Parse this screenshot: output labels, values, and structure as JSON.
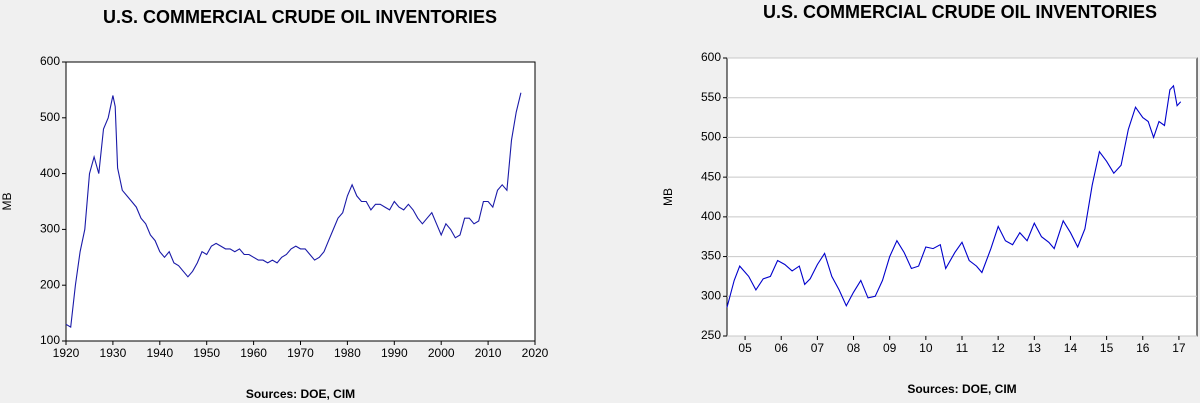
{
  "chart_data": [
    {
      "type": "line",
      "title": "U.S. COMMERCIAL CRUDE OIL INVENTORIES",
      "y_label": "MB",
      "source": "Sources:  DOE, CIM",
      "xlim": [
        1920,
        2020
      ],
      "xticks": [
        1920,
        1930,
        1940,
        1950,
        1960,
        1970,
        1980,
        1990,
        2000,
        2010,
        2020
      ],
      "ylim": [
        100,
        600
      ],
      "yticks": [
        100,
        200,
        300,
        400,
        500,
        600
      ],
      "grid": false,
      "series": [
        {
          "color": "#1a1aa8",
          "x": [
            1920,
            1921,
            1922,
            1923,
            1924,
            1925,
            1926,
            1927,
            1928,
            1929,
            1930,
            1930.5,
            1931,
            1932,
            1933,
            1934,
            1935,
            1936,
            1937,
            1938,
            1939,
            1940,
            1941,
            1942,
            1943,
            1944,
            1945,
            1946,
            1947,
            1948,
            1949,
            1950,
            1951,
            1952,
            1953,
            1954,
            1955,
            1956,
            1957,
            1958,
            1959,
            1960,
            1961,
            1962,
            1963,
            1964,
            1965,
            1966,
            1967,
            1968,
            1969,
            1970,
            1971,
            1972,
            1973,
            1974,
            1975,
            1976,
            1977,
            1978,
            1979,
            1980,
            1981,
            1982,
            1983,
            1984,
            1985,
            1986,
            1987,
            1988,
            1989,
            1990,
            1991,
            1992,
            1993,
            1994,
            1995,
            1996,
            1997,
            1998,
            1999,
            2000,
            2001,
            2002,
            2003,
            2004,
            2005,
            2006,
            2007,
            2008,
            2009,
            2010,
            2011,
            2012,
            2013,
            2014,
            2015,
            2016,
            2017
          ],
          "values": [
            130,
            125,
            200,
            260,
            300,
            400,
            430,
            400,
            480,
            500,
            540,
            520,
            410,
            370,
            360,
            350,
            340,
            320,
            310,
            290,
            280,
            260,
            250,
            260,
            240,
            235,
            225,
            215,
            225,
            240,
            260,
            255,
            270,
            275,
            270,
            265,
            265,
            260,
            265,
            255,
            255,
            250,
            245,
            245,
            240,
            245,
            240,
            250,
            255,
            265,
            270,
            265,
            265,
            255,
            245,
            250,
            260,
            280,
            300,
            320,
            330,
            360,
            380,
            360,
            350,
            350,
            335,
            345,
            345,
            340,
            335,
            350,
            340,
            335,
            345,
            335,
            320,
            310,
            320,
            330,
            310,
            290,
            310,
            300,
            285,
            290,
            320,
            320,
            310,
            315,
            350,
            350,
            340,
            370,
            380,
            370,
            460,
            510,
            545
          ]
        }
      ]
    },
    {
      "type": "line",
      "title": "U.S. COMMERCIAL CRUDE OIL INVENTORIES",
      "y_label": "MB",
      "source": "Sources:  DOE, CIM",
      "xlim": [
        2005,
        2018
      ],
      "xticks": [
        {
          "value": 2005.5,
          "label": "05"
        },
        {
          "value": 2006.5,
          "label": "06"
        },
        {
          "value": 2007.5,
          "label": "07"
        },
        {
          "value": 2008.5,
          "label": "08"
        },
        {
          "value": 2009.5,
          "label": "09"
        },
        {
          "value": 2010.5,
          "label": "10"
        },
        {
          "value": 2011.5,
          "label": "11"
        },
        {
          "value": 2012.5,
          "label": "12"
        },
        {
          "value": 2013.5,
          "label": "13"
        },
        {
          "value": 2014.5,
          "label": "14"
        },
        {
          "value": 2015.5,
          "label": "15"
        },
        {
          "value": 2016.5,
          "label": "16"
        },
        {
          "value": 2017.5,
          "label": "17"
        }
      ],
      "ylim": [
        250,
        600
      ],
      "yticks": [
        250,
        300,
        350,
        400,
        450,
        500,
        550,
        600
      ],
      "grid": true,
      "series": [
        {
          "color": "#0000cc",
          "x": [
            2005.0,
            2005.2,
            2005.35,
            2005.6,
            2005.8,
            2006.0,
            2006.2,
            2006.4,
            2006.6,
            2006.8,
            2007.0,
            2007.15,
            2007.3,
            2007.5,
            2007.7,
            2007.9,
            2008.1,
            2008.3,
            2008.5,
            2008.7,
            2008.9,
            2009.1,
            2009.3,
            2009.5,
            2009.7,
            2009.9,
            2010.1,
            2010.3,
            2010.5,
            2010.7,
            2010.9,
            2011.05,
            2011.3,
            2011.5,
            2011.7,
            2011.9,
            2012.05,
            2012.3,
            2012.5,
            2012.7,
            2012.9,
            2013.1,
            2013.3,
            2013.5,
            2013.7,
            2013.9,
            2014.05,
            2014.3,
            2014.5,
            2014.7,
            2014.9,
            2015.1,
            2015.3,
            2015.5,
            2015.7,
            2015.9,
            2016.1,
            2016.3,
            2016.5,
            2016.65,
            2016.8,
            2016.95,
            2017.1,
            2017.25,
            2017.35,
            2017.45,
            2017.55
          ],
          "values": [
            286,
            320,
            338,
            325,
            308,
            322,
            325,
            345,
            340,
            332,
            338,
            315,
            322,
            340,
            354,
            325,
            308,
            288,
            305,
            320,
            298,
            300,
            320,
            350,
            370,
            355,
            335,
            338,
            362,
            360,
            365,
            335,
            355,
            368,
            345,
            338,
            330,
            360,
            388,
            370,
            365,
            380,
            370,
            392,
            375,
            368,
            360,
            395,
            380,
            362,
            385,
            440,
            482,
            470,
            455,
            465,
            510,
            538,
            525,
            520,
            500,
            520,
            515,
            560,
            565,
            540,
            545
          ]
        }
      ]
    }
  ]
}
